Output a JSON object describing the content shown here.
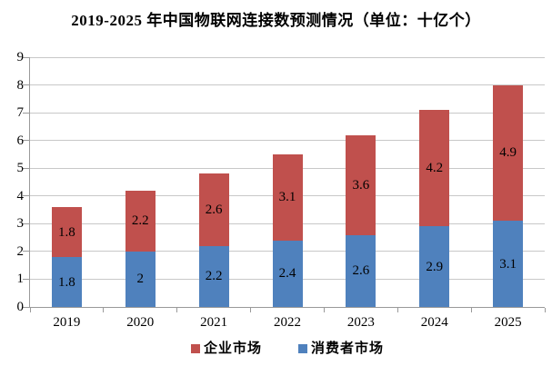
{
  "title": "2019-2025 年中国物联网连接数预测情况（单位：十亿个）",
  "chart_data": {
    "type": "bar",
    "stacked": true,
    "title": "2019-2025 年中国物联网连接数预测情况（单位：十亿个）",
    "unit": "十亿个",
    "categories": [
      "2019",
      "2020",
      "2021",
      "2022",
      "2023",
      "2024",
      "2025"
    ],
    "series": [
      {
        "name": "消费者市场",
        "color": "#4F81BD",
        "values": [
          1.8,
          2,
          2.2,
          2.4,
          2.6,
          2.9,
          3.1
        ],
        "labels": [
          "1.8",
          "2",
          "2.2",
          "2.4",
          "2.6",
          "2.9",
          "3.1"
        ]
      },
      {
        "name": "企业市场",
        "color": "#C0504D",
        "values": [
          1.8,
          2.2,
          2.6,
          3.1,
          3.6,
          4.2,
          4.9
        ],
        "labels": [
          "1.8",
          "2.2",
          "2.6",
          "3.1",
          "3.6",
          "4.2",
          "4.9"
        ]
      }
    ],
    "totals": [
      3.6,
      4.2,
      4.8,
      5.5,
      6.2,
      7.1,
      8.0
    ],
    "legend": [
      {
        "label": "企业市场",
        "color": "#C0504D"
      },
      {
        "label": "消费者市场",
        "color": "#4F81BD"
      }
    ],
    "legend_position": "bottom",
    "ylim": [
      0,
      9
    ],
    "ytick_step": 1,
    "grid": true,
    "grid_color": "#c8c8c8",
    "axis_color": "#9a9a9a",
    "text_color": "#000000"
  }
}
